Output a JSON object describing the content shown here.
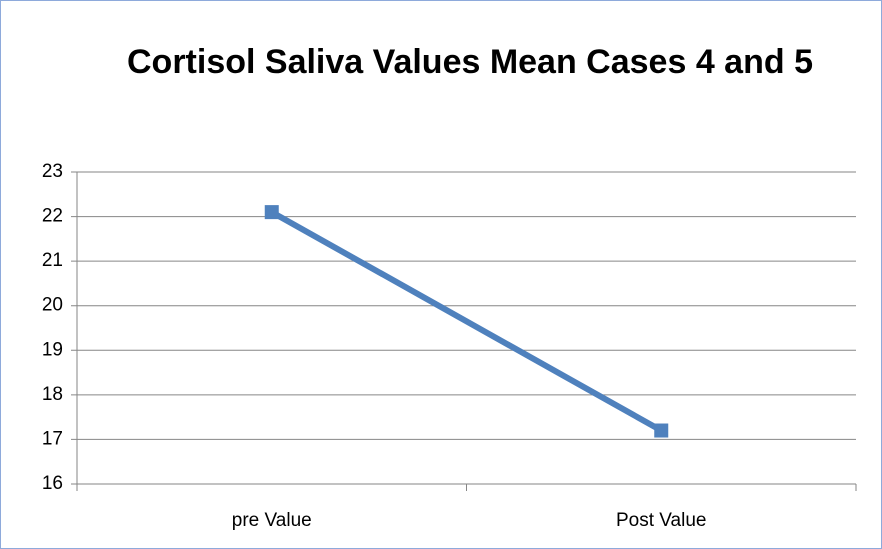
{
  "chart_data": {
    "type": "line",
    "title": "Cortisol Saliva Values Mean Cases 4 and 5",
    "categories": [
      "pre Value",
      "Post Value"
    ],
    "values": [
      22.1,
      17.2
    ],
    "color": "#4f81bd",
    "ylim": [
      16,
      23
    ],
    "yticks": [
      16,
      17,
      18,
      19,
      20,
      21,
      22,
      23
    ],
    "grid": true
  }
}
